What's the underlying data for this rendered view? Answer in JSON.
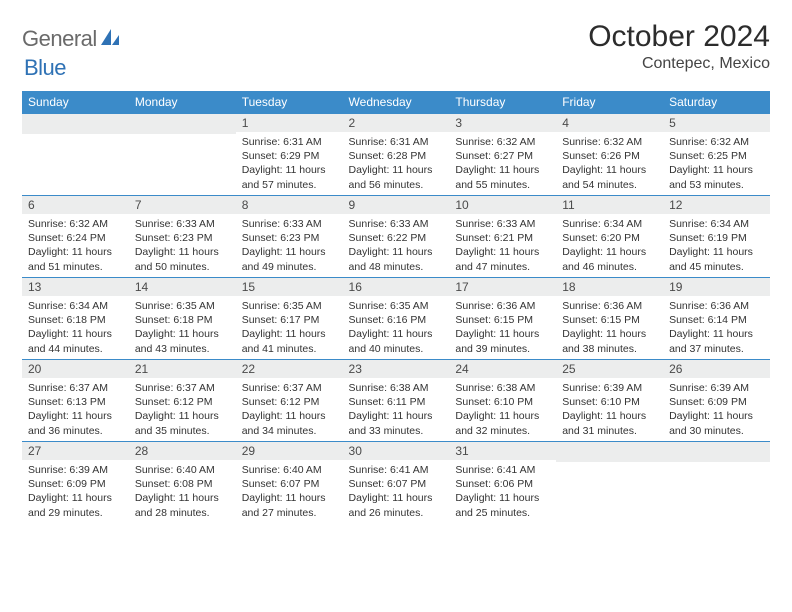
{
  "brand": {
    "word1": "General",
    "word2": "Blue",
    "logo_color": "#2f72b5"
  },
  "title": "October 2024",
  "location": "Contepec, Mexico",
  "colors": {
    "header_bg": "#3b8bc9",
    "header_fg": "#ffffff",
    "daynum_bg": "#eceded",
    "day_border": "#3b8bc9",
    "text": "#333333",
    "title_text": "#2c2c2c",
    "logo_gray": "#6a6a6a"
  },
  "typography": {
    "title_fontsize": 30,
    "location_fontsize": 16,
    "header_fontsize": 12,
    "daynum_fontsize": 12,
    "body_fontsize": 10.5
  },
  "weekday_headers": [
    "Sunday",
    "Monday",
    "Tuesday",
    "Wednesday",
    "Thursday",
    "Friday",
    "Saturday"
  ],
  "weeks": [
    [
      {
        "n": null
      },
      {
        "n": null
      },
      {
        "n": "1",
        "sunrise": "6:31 AM",
        "sunset": "6:29 PM",
        "daylight": "11 hours and 57 minutes."
      },
      {
        "n": "2",
        "sunrise": "6:31 AM",
        "sunset": "6:28 PM",
        "daylight": "11 hours and 56 minutes."
      },
      {
        "n": "3",
        "sunrise": "6:32 AM",
        "sunset": "6:27 PM",
        "daylight": "11 hours and 55 minutes."
      },
      {
        "n": "4",
        "sunrise": "6:32 AM",
        "sunset": "6:26 PM",
        "daylight": "11 hours and 54 minutes."
      },
      {
        "n": "5",
        "sunrise": "6:32 AM",
        "sunset": "6:25 PM",
        "daylight": "11 hours and 53 minutes."
      }
    ],
    [
      {
        "n": "6",
        "sunrise": "6:32 AM",
        "sunset": "6:24 PM",
        "daylight": "11 hours and 51 minutes."
      },
      {
        "n": "7",
        "sunrise": "6:33 AM",
        "sunset": "6:23 PM",
        "daylight": "11 hours and 50 minutes."
      },
      {
        "n": "8",
        "sunrise": "6:33 AM",
        "sunset": "6:23 PM",
        "daylight": "11 hours and 49 minutes."
      },
      {
        "n": "9",
        "sunrise": "6:33 AM",
        "sunset": "6:22 PM",
        "daylight": "11 hours and 48 minutes."
      },
      {
        "n": "10",
        "sunrise": "6:33 AM",
        "sunset": "6:21 PM",
        "daylight": "11 hours and 47 minutes."
      },
      {
        "n": "11",
        "sunrise": "6:34 AM",
        "sunset": "6:20 PM",
        "daylight": "11 hours and 46 minutes."
      },
      {
        "n": "12",
        "sunrise": "6:34 AM",
        "sunset": "6:19 PM",
        "daylight": "11 hours and 45 minutes."
      }
    ],
    [
      {
        "n": "13",
        "sunrise": "6:34 AM",
        "sunset": "6:18 PM",
        "daylight": "11 hours and 44 minutes."
      },
      {
        "n": "14",
        "sunrise": "6:35 AM",
        "sunset": "6:18 PM",
        "daylight": "11 hours and 43 minutes."
      },
      {
        "n": "15",
        "sunrise": "6:35 AM",
        "sunset": "6:17 PM",
        "daylight": "11 hours and 41 minutes."
      },
      {
        "n": "16",
        "sunrise": "6:35 AM",
        "sunset": "6:16 PM",
        "daylight": "11 hours and 40 minutes."
      },
      {
        "n": "17",
        "sunrise": "6:36 AM",
        "sunset": "6:15 PM",
        "daylight": "11 hours and 39 minutes."
      },
      {
        "n": "18",
        "sunrise": "6:36 AM",
        "sunset": "6:15 PM",
        "daylight": "11 hours and 38 minutes."
      },
      {
        "n": "19",
        "sunrise": "6:36 AM",
        "sunset": "6:14 PM",
        "daylight": "11 hours and 37 minutes."
      }
    ],
    [
      {
        "n": "20",
        "sunrise": "6:37 AM",
        "sunset": "6:13 PM",
        "daylight": "11 hours and 36 minutes."
      },
      {
        "n": "21",
        "sunrise": "6:37 AM",
        "sunset": "6:12 PM",
        "daylight": "11 hours and 35 minutes."
      },
      {
        "n": "22",
        "sunrise": "6:37 AM",
        "sunset": "6:12 PM",
        "daylight": "11 hours and 34 minutes."
      },
      {
        "n": "23",
        "sunrise": "6:38 AM",
        "sunset": "6:11 PM",
        "daylight": "11 hours and 33 minutes."
      },
      {
        "n": "24",
        "sunrise": "6:38 AM",
        "sunset": "6:10 PM",
        "daylight": "11 hours and 32 minutes."
      },
      {
        "n": "25",
        "sunrise": "6:39 AM",
        "sunset": "6:10 PM",
        "daylight": "11 hours and 31 minutes."
      },
      {
        "n": "26",
        "sunrise": "6:39 AM",
        "sunset": "6:09 PM",
        "daylight": "11 hours and 30 minutes."
      }
    ],
    [
      {
        "n": "27",
        "sunrise": "6:39 AM",
        "sunset": "6:09 PM",
        "daylight": "11 hours and 29 minutes."
      },
      {
        "n": "28",
        "sunrise": "6:40 AM",
        "sunset": "6:08 PM",
        "daylight": "11 hours and 28 minutes."
      },
      {
        "n": "29",
        "sunrise": "6:40 AM",
        "sunset": "6:07 PM",
        "daylight": "11 hours and 27 minutes."
      },
      {
        "n": "30",
        "sunrise": "6:41 AM",
        "sunset": "6:07 PM",
        "daylight": "11 hours and 26 minutes."
      },
      {
        "n": "31",
        "sunrise": "6:41 AM",
        "sunset": "6:06 PM",
        "daylight": "11 hours and 25 minutes."
      },
      {
        "n": null
      },
      {
        "n": null
      }
    ]
  ],
  "labels": {
    "sunrise_prefix": "Sunrise: ",
    "sunset_prefix": "Sunset: ",
    "daylight_prefix": "Daylight: "
  }
}
